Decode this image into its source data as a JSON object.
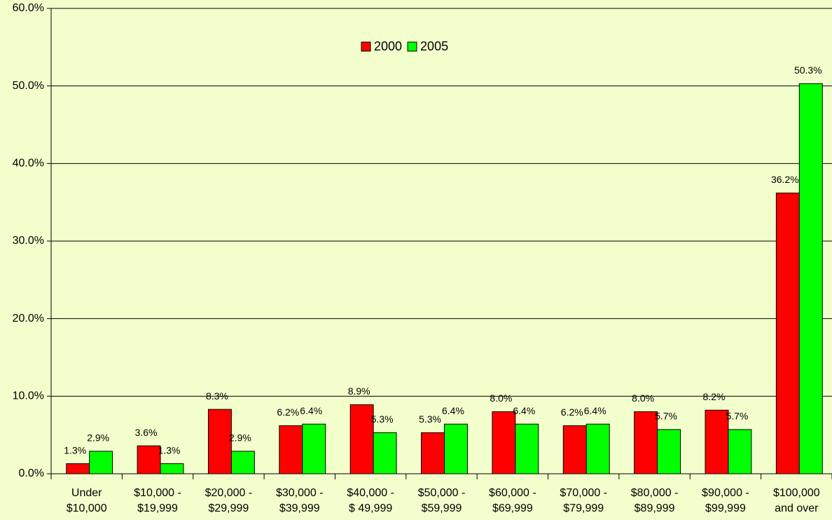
{
  "chart_data": {
    "type": "bar",
    "categories": [
      "Under\n$10,000",
      "$10,000 -\n$19,999",
      "$20,000 -\n$29,999",
      "$30,000 -\n$39,999",
      "$40,000 -\n$ 49,999",
      "$50,000 -\n$59,999",
      "$60,000 -\n$69,999",
      "$70,000 -\n$79,999",
      "$80,000 -\n$89,999",
      "$90,000 -\n$99,999",
      "$100,000\nand over"
    ],
    "series": [
      {
        "name": "2000",
        "color": "#ff0000",
        "values": [
          1.3,
          3.6,
          8.3,
          6.2,
          8.9,
          5.3,
          8.0,
          6.2,
          8.0,
          8.2,
          36.2
        ],
        "value_labels": [
          "1.3%",
          "3.6%",
          "8.3%",
          "6.2%",
          "8.9%",
          "5.3%",
          "8.0%",
          "6.2%",
          "8.0%",
          "8.2%",
          "36.2%"
        ]
      },
      {
        "name": "2005",
        "color": "#00ff00",
        "values": [
          2.9,
          1.3,
          2.9,
          6.4,
          5.3,
          6.4,
          6.4,
          6.4,
          5.7,
          5.7,
          50.3
        ],
        "value_labels": [
          "2.9%",
          "1.3%",
          "2.9%",
          "6.4%",
          "5.3%",
          "6.4%",
          "6.4%",
          "6.4%",
          "5.7%",
          "5.7%",
          "50.3%"
        ]
      }
    ],
    "ylim": [
      0,
      60
    ],
    "yticks": [
      {
        "value": 0,
        "label": "0.0%"
      },
      {
        "value": 10,
        "label": "10.0%"
      },
      {
        "value": 20,
        "label": "20.0%"
      },
      {
        "value": 30,
        "label": "30.0%"
      },
      {
        "value": 40,
        "label": "40.0%"
      },
      {
        "value": 50,
        "label": "50.0%"
      },
      {
        "value": 60,
        "label": "60.0%"
      }
    ],
    "grid": true,
    "legend": "top"
  }
}
